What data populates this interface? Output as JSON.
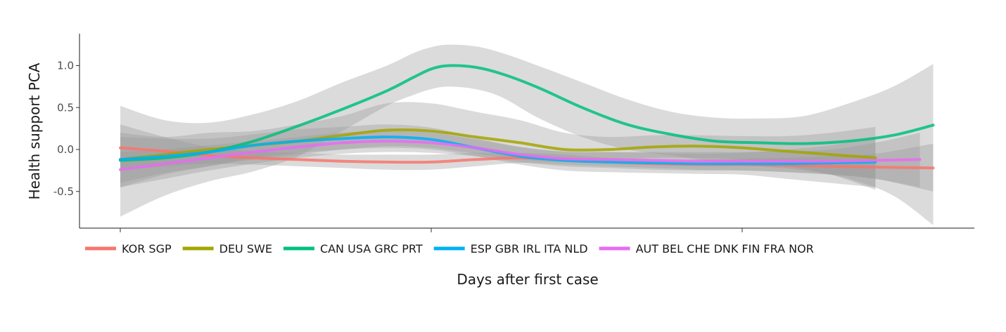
{
  "chart_data": {
    "type": "line",
    "xlabel": "Days after first case",
    "ylabel": "Health support PCA",
    "ylim": [
      -0.95,
      1.4
    ],
    "xlim": [
      0,
      100
    ],
    "yticks": [
      1.0,
      0.5,
      0.0,
      -0.5
    ],
    "ytick_labels": [
      "1.0",
      "0.5",
      "0.0",
      "-0.5"
    ],
    "xticks": [
      5,
      40,
      75
    ],
    "xtick_labels": [
      "",
      "",
      ""
    ],
    "grid": false,
    "legend_position": "bottom",
    "band_color": "#999999",
    "series": [
      {
        "name": "KOR SGP",
        "color": "#F8766D",
        "x": [
          5,
          10,
          15,
          20,
          25,
          30,
          35,
          40,
          45,
          50,
          55,
          60,
          65,
          70,
          75,
          80,
          85,
          90,
          96.5
        ],
        "values": [
          0.02,
          -0.02,
          -0.07,
          -0.1,
          -0.12,
          -0.14,
          -0.15,
          -0.15,
          -0.12,
          -0.1,
          -0.12,
          -0.15,
          -0.17,
          -0.18,
          -0.18,
          -0.19,
          -0.2,
          -0.21,
          -0.22
        ],
        "lower": [
          -0.25,
          -0.2,
          -0.17,
          -0.18,
          -0.2,
          -0.22,
          -0.24,
          -0.24,
          -0.2,
          -0.16,
          -0.18,
          -0.2,
          -0.22,
          -0.24,
          -0.25,
          -0.27,
          -0.3,
          -0.35,
          -0.5
        ],
        "upper": [
          0.3,
          0.15,
          0.03,
          -0.02,
          -0.04,
          -0.06,
          -0.06,
          -0.06,
          -0.04,
          -0.04,
          -0.06,
          -0.1,
          -0.12,
          -0.12,
          -0.11,
          -0.1,
          -0.08,
          -0.05,
          0.07
        ]
      },
      {
        "name": "DEU SWE",
        "color": "#A3A500",
        "x": [
          5,
          10,
          15,
          20,
          25,
          30,
          35,
          40,
          45,
          50,
          55,
          60,
          65,
          70,
          75,
          80,
          85,
          90
        ],
        "values": [
          -0.12,
          -0.06,
          0.0,
          0.05,
          0.1,
          0.17,
          0.23,
          0.22,
          0.15,
          0.08,
          0.0,
          0.0,
          0.03,
          0.04,
          0.02,
          -0.02,
          -0.06,
          -0.1
        ],
        "lower": [
          -0.45,
          -0.3,
          -0.2,
          -0.12,
          -0.06,
          0.0,
          0.04,
          0.02,
          -0.05,
          -0.12,
          -0.15,
          -0.13,
          -0.1,
          -0.1,
          -0.12,
          -0.2,
          -0.3,
          -0.48
        ],
        "upper": [
          0.2,
          0.15,
          0.2,
          0.22,
          0.3,
          0.4,
          0.55,
          0.55,
          0.45,
          0.35,
          0.2,
          0.15,
          0.17,
          0.17,
          0.16,
          0.16,
          0.2,
          0.27
        ]
      },
      {
        "name": "CAN USA GRC PRT",
        "color": "#00BF7D",
        "x": [
          5,
          10,
          15,
          20,
          25,
          30,
          35,
          38,
          40,
          42,
          45,
          48,
          52,
          57,
          62,
          67,
          72,
          77,
          82,
          87,
          92,
          96.5
        ],
        "values": [
          -0.13,
          -0.1,
          -0.03,
          0.1,
          0.28,
          0.48,
          0.7,
          0.86,
          0.96,
          1.0,
          0.98,
          0.9,
          0.74,
          0.5,
          0.3,
          0.18,
          0.1,
          0.08,
          0.07,
          0.1,
          0.17,
          0.29
        ],
        "lower": [
          -0.8,
          -0.55,
          -0.38,
          -0.26,
          -0.08,
          0.22,
          0.52,
          0.65,
          0.72,
          0.75,
          0.72,
          0.62,
          0.38,
          0.15,
          0.0,
          -0.07,
          -0.15,
          -0.2,
          -0.25,
          -0.35,
          -0.55,
          -0.9
        ],
        "upper": [
          0.52,
          0.35,
          0.32,
          0.42,
          0.58,
          0.8,
          1.0,
          1.15,
          1.22,
          1.25,
          1.23,
          1.15,
          1.0,
          0.8,
          0.6,
          0.45,
          0.38,
          0.37,
          0.4,
          0.55,
          0.75,
          1.02
        ]
      },
      {
        "name": "ESP GBR IRL ITA NLD",
        "color": "#00B0F6",
        "x": [
          5,
          10,
          15,
          20,
          25,
          30,
          35,
          40,
          45,
          50,
          55,
          60,
          65,
          70,
          75,
          80,
          85,
          90
        ],
        "values": [
          -0.12,
          -0.08,
          -0.03,
          0.05,
          0.1,
          0.13,
          0.15,
          0.12,
          0.02,
          -0.08,
          -0.13,
          -0.15,
          -0.16,
          -0.17,
          -0.17,
          -0.17,
          -0.16,
          -0.15
        ],
        "lower": [
          -0.4,
          -0.28,
          -0.2,
          -0.1,
          -0.04,
          0.0,
          0.02,
          0.0,
          -0.08,
          -0.18,
          -0.25,
          -0.27,
          -0.28,
          -0.29,
          -0.3,
          -0.35,
          -0.4,
          -0.45
        ],
        "upper": [
          0.15,
          0.13,
          0.13,
          0.18,
          0.24,
          0.27,
          0.3,
          0.26,
          0.14,
          0.03,
          -0.02,
          -0.03,
          -0.04,
          -0.05,
          -0.04,
          0.0,
          0.05,
          0.15
        ]
      },
      {
        "name": "AUT BEL CHE DNK FIN FRA NOR",
        "color": "#E76BF3",
        "x": [
          5,
          10,
          15,
          20,
          25,
          30,
          35,
          40,
          45,
          50,
          55,
          60,
          65,
          70,
          75,
          80,
          85,
          90,
          95
        ],
        "values": [
          -0.24,
          -0.17,
          -0.1,
          -0.03,
          0.03,
          0.08,
          0.1,
          0.08,
          0.02,
          -0.06,
          -0.11,
          -0.12,
          -0.13,
          -0.14,
          -0.14,
          -0.14,
          -0.14,
          -0.13,
          -0.12
        ],
        "lower": [
          -0.45,
          -0.35,
          -0.25,
          -0.17,
          -0.1,
          -0.05,
          -0.03,
          -0.04,
          -0.08,
          -0.15,
          -0.2,
          -0.22,
          -0.24,
          -0.25,
          -0.25,
          -0.27,
          -0.3,
          -0.35,
          -0.45
        ],
        "upper": [
          -0.03,
          0.0,
          0.05,
          0.1,
          0.15,
          0.2,
          0.22,
          0.2,
          0.12,
          0.03,
          -0.03,
          -0.03,
          -0.03,
          -0.03,
          -0.03,
          -0.02,
          0.0,
          0.08,
          0.2
        ]
      }
    ]
  }
}
